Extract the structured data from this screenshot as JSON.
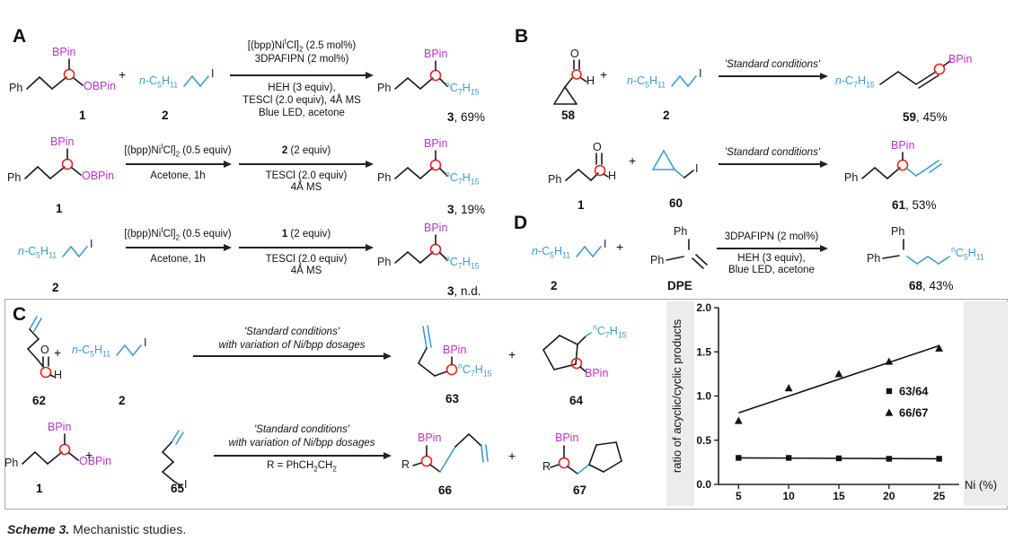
{
  "colors": {
    "boron_label": "#b735c6",
    "alkyl_chain": "#3e9bd0",
    "radical_highlight": "#e8251c",
    "bond": "#1a1a1a"
  },
  "atoms": {
    "ph": "Ph",
    "bpin": "BPin",
    "obpin": "OBPin",
    "iodide": "I",
    "oxygen": "O",
    "hydrogen": "H",
    "r": "R",
    "plus": "+",
    "n_c5h11": "*n*-C~5~H~11~",
    "n_c7h15": "*n*-C~7~H~15~",
    "sup_c7h15": "^n^C~7~H~15~",
    "sup_c5h11": "^n^C~5~H~11~"
  },
  "panelA": {
    "label": "A",
    "row1": {
      "num1": "**1**",
      "num2": "**2**",
      "above": [
        "[(bpp)Ni^I^Cl]~2~ (2.5 mol%)",
        "3DPAFIPN (2 mol%)"
      ],
      "below": [
        "HEH (3 equiv),",
        "TESCl (2.0 equiv), 4Å MS",
        "Blue LED, acetone"
      ],
      "product": "**3**, 69%"
    },
    "row2": {
      "num1": "**1**",
      "arrow1_above": "[(bpp)Ni^I^Cl]~2~ (0.5 equiv)",
      "arrow1_below": "Acetone, 1h",
      "arrow2_above": "**2** (2 equiv)",
      "arrow2_below": [
        "TESCl (2.0 equiv)",
        "4Å MS"
      ],
      "product": "**3**, 19%"
    },
    "row3": {
      "num2": "**2**",
      "arrow1_above": "[(bpp)Ni^I^Cl]~2~ (0.5 equiv)",
      "arrow1_below": "Acetone, 1h",
      "arrow2_above": "**1** (2 equiv)",
      "arrow2_below": [
        "TESCl (2.0 equiv)",
        "4Å MS"
      ],
      "product": "**3**, n.d."
    }
  },
  "panelB": {
    "label": "B",
    "row1": {
      "num1": "**58**",
      "num2": "**2**",
      "cond": "*'Standard conditions'*",
      "product": "**59**, 45%"
    },
    "row2": {
      "num1": "**1**",
      "num2": "**60**",
      "cond": "*'Standard conditions'*",
      "product": "**61**, 53%"
    }
  },
  "panelC": {
    "label": "C",
    "row1": {
      "num1": "**62**",
      "num2": "**2**",
      "cond1": "*'Standard conditions'*",
      "cond2": "*with variation of Ni/bpp dosages*",
      "numP1": "**63**",
      "numP2": "**64**"
    },
    "row2": {
      "num1": "**1**",
      "num2": "**65**",
      "cond1": "*'Standard conditions'*",
      "cond2": "*with variation of Ni/bpp dosages*",
      "cond3": "R = PhCH~2~CH~2~",
      "numP1": "**66**",
      "numP2": "**67**"
    }
  },
  "panelD": {
    "label": "D",
    "num1": "**2**",
    "num2": "**DPE**",
    "above": "3DPAFIPN (2 mol%)",
    "below": [
      "HEH (3 equiv),",
      "Blue LED, acetone"
    ],
    "product": "**68**, 43%"
  },
  "caption": {
    "scheme": "Scheme 3.",
    "text": " Mechanistic studies."
  },
  "chart_data": {
    "type": "scatter",
    "title": "",
    "xlabel": "Ni (%)",
    "ylabel": "ratio of acyclic/cyclic products",
    "x_ticks": [
      5,
      10,
      15,
      20,
      25
    ],
    "y_ticks": [
      0.0,
      0.5,
      1.0,
      1.5,
      2.0
    ],
    "x_range": [
      3,
      27
    ],
    "y_range": [
      0,
      2.0
    ],
    "grid": false,
    "legend_position": "center-right",
    "series": [
      {
        "name": "63/64",
        "marker": "square",
        "points": [
          [
            5,
            0.3
          ],
          [
            10,
            0.3
          ],
          [
            15,
            0.295
          ],
          [
            20,
            0.29
          ],
          [
            25,
            0.29
          ]
        ],
        "fit_line": [
          [
            5,
            0.3
          ],
          [
            25,
            0.29
          ]
        ]
      },
      {
        "name": "66/67",
        "marker": "triangle",
        "points": [
          [
            5,
            0.72
          ],
          [
            10,
            1.09
          ],
          [
            15,
            1.25
          ],
          [
            20,
            1.39
          ],
          [
            25,
            1.54
          ]
        ],
        "fit_line": [
          [
            5,
            0.81
          ],
          [
            25,
            1.57
          ]
        ]
      }
    ]
  }
}
